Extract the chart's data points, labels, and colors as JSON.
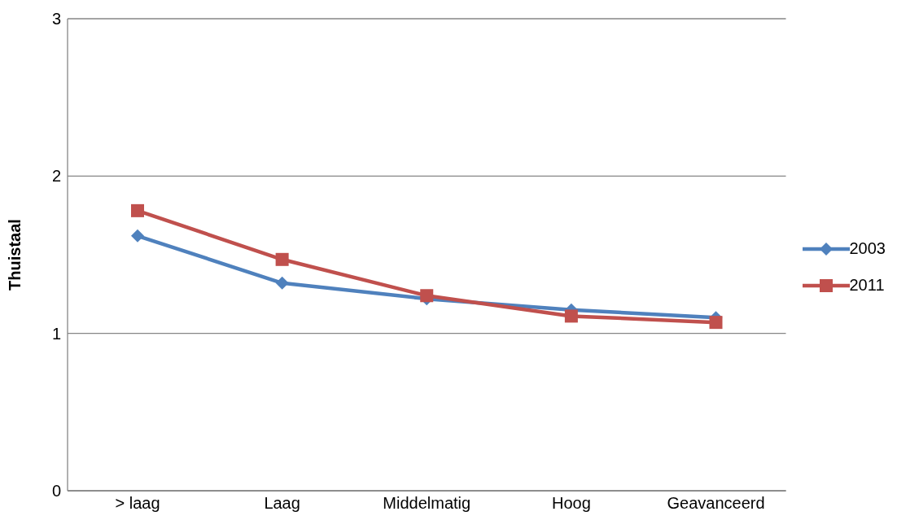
{
  "chart_data": {
    "type": "line",
    "ylabel": "Thuistaal",
    "categories": [
      "> laag",
      "Laag",
      "Middelmatig",
      "Hoog",
      "Geavanceerd"
    ],
    "series": [
      {
        "name": "2003",
        "color": "#4f81bd",
        "marker": "diamond",
        "values": [
          1.62,
          1.32,
          1.22,
          1.15,
          1.1
        ]
      },
      {
        "name": "2011",
        "color": "#c0504d",
        "marker": "square",
        "values": [
          1.78,
          1.47,
          1.24,
          1.11,
          1.07
        ]
      }
    ],
    "ylim": [
      0,
      3
    ],
    "yticks": [
      0,
      1,
      2,
      3
    ],
    "grid": "y",
    "legend": "right"
  }
}
